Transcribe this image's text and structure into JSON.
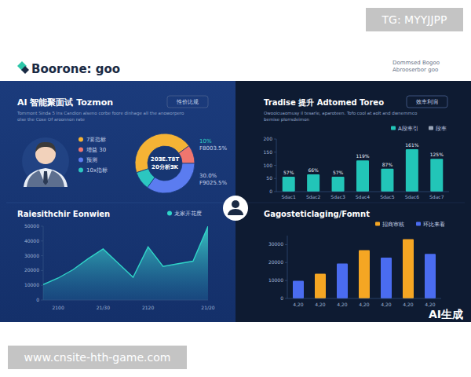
{
  "watermark": "TG: MYYJJPP",
  "header": {
    "brand": "Boorone: goo",
    "right_lines": [
      "Dommsed Bogoo",
      "Abrooserbor goo"
    ]
  },
  "footer": {
    "site": "www.cnsite-hth-game.com",
    "badge": "AI生成"
  },
  "chart_data": [
    {
      "type": "pie",
      "title": "AI 智能聚面试 Tozmon",
      "subtitle": [
        "Tommont Sinda 5 Ins Candion alseno corbe foore dinhage all the anoworpero",
        "olse the Cose Of aroonnon rate"
      ],
      "annotations": [
        "性价比规",
        "20ƎE.T8T",
        "20分析ƎK",
        "10%",
        "F8003.5%",
        "30.0%",
        "F9025.5%"
      ],
      "categories": [
        "7要指标",
        "增益 30",
        "预测",
        "10x指标"
      ],
      "values": [
        45,
        10,
        35,
        10
      ],
      "colors": [
        "#f5b335",
        "#f0766e",
        "#5b7cf0",
        "#2cc6c0"
      ],
      "legend": "left"
    },
    {
      "type": "area",
      "title": "Raiesithchir Eonwien",
      "categories": [
        null,
        "2100",
        null,
        null,
        "21/30",
        null,
        null,
        "2120",
        null,
        null,
        null,
        "21/20"
      ],
      "series": [
        {
          "name": "龙家开花度",
          "color": "#2fd4c8",
          "values": [
            10500,
            14900,
            20600,
            28000,
            34600,
            25000,
            15400,
            36000,
            22800,
            24600,
            26300,
            50000
          ]
        }
      ],
      "ylim": [
        0,
        50000
      ],
      "yticks": [
        0,
        10000,
        20000,
        30000,
        40000,
        50000
      ],
      "legend": "top-right"
    },
    {
      "type": "bar",
      "title": "Tradise 提升 Adtomed Toreo",
      "subtitle": [
        "Owooicuaomusy il tesarle, aparoteen. Tofo cool at aolt and dwnemmco",
        "bemise plorrsdeimon"
      ],
      "annotations": [
        "效率利润"
      ],
      "categories": [
        "Sdac1",
        "Sdac2",
        "Sdac3",
        "Sdac4",
        "Sdac5",
        "Sdac6",
        "Sdac7"
      ],
      "series": [
        {
          "name": "A段率引",
          "color": "#22c5b8",
          "values": [
            57,
            66,
            57,
            119,
            87,
            161,
            125
          ],
          "value_labels": [
            "57%",
            "66%",
            "57%",
            "119%",
            "87%",
            "161%",
            "125%"
          ]
        },
        {
          "name": "段率",
          "color": "#9aa6b8",
          "values": [
            null,
            null,
            null,
            null,
            null,
            null,
            null
          ]
        }
      ],
      "ylim": [
        0,
        200
      ],
      "yticks": [
        0,
        50,
        100,
        150,
        200
      ],
      "data_labels": true,
      "legend": "top-right"
    },
    {
      "type": "bar",
      "title": "Gagosteticlaging/Fomnt",
      "categories": [
        "4,20",
        "4,20",
        "4,20",
        "4,20",
        "4,20",
        "4,20",
        "4,20"
      ],
      "stacked": true,
      "series": [
        {
          "name": "招商审核",
          "color": "#f5a623",
          "values": [
            null,
            13800,
            null,
            26900,
            null,
            33000,
            null
          ]
        },
        {
          "name": "环比来看",
          "color": "#4a6cf0",
          "values": [
            9800,
            null,
            19500,
            null,
            22800,
            null,
            24800
          ]
        }
      ],
      "ylim": [
        0,
        35000
      ],
      "yticks": [
        0,
        10000,
        20000,
        30000
      ],
      "legend": "top-right"
    }
  ]
}
